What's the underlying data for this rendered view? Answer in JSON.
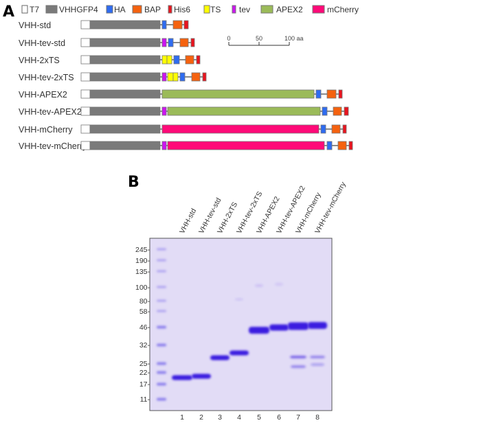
{
  "panel_a": {
    "label": "A",
    "legend": [
      {
        "name": "T7",
        "color": "#ffffff"
      },
      {
        "name": "VHHGFP4",
        "color": "#7a7a7a"
      },
      {
        "name": "HA",
        "color": "#2f6cf0"
      },
      {
        "name": "BAP",
        "color": "#f5620f"
      },
      {
        "name": "His6",
        "color": "#e8141e"
      },
      {
        "name": "TS",
        "color": "#ffff00"
      },
      {
        "name": "tev",
        "color": "#cc14f0"
      },
      {
        "name": "APEX2",
        "color": "#9bbb59"
      },
      {
        "name": "mCherry",
        "color": "#ff0a78"
      }
    ],
    "constructs": [
      {
        "name": "VHH-std",
        "domains": [
          "T7",
          "VHHGFP4",
          "HA",
          "BAP",
          "His6"
        ]
      },
      {
        "name": "VHH-tev-std",
        "domains": [
          "T7",
          "VHHGFP4",
          "tev",
          "HA",
          "BAP",
          "His6"
        ]
      },
      {
        "name": "VHH-2xTS",
        "domains": [
          "T7",
          "VHHGFP4",
          "TS",
          "TS",
          "HA",
          "BAP",
          "His6"
        ]
      },
      {
        "name": "VHH-tev-2xTS",
        "domains": [
          "T7",
          "VHHGFP4",
          "tev",
          "TS",
          "TS",
          "HA",
          "BAP",
          "His6"
        ]
      },
      {
        "name": "VHH-APEX2",
        "domains": [
          "T7",
          "VHHGFP4",
          "APEX2",
          "HA",
          "BAP",
          "His6"
        ]
      },
      {
        "name": "VHH-tev-APEX2",
        "domains": [
          "T7",
          "VHHGFP4",
          "tev",
          "APEX2",
          "HA",
          "BAP",
          "His6"
        ]
      },
      {
        "name": "VHH-mCherry",
        "domains": [
          "T7",
          "VHHGFP4",
          "mCherry",
          "HA",
          "BAP",
          "His6"
        ]
      },
      {
        "name": "VHH-tev-mCherry",
        "domains": [
          "T7",
          "VHHGFP4",
          "tev",
          "mCherry",
          "HA",
          "BAP",
          "His6"
        ]
      }
    ],
    "scale_bar": {
      "ticks": [
        "0",
        "50",
        "100 aa"
      ]
    }
  },
  "panel_b": {
    "label": "B",
    "lane_labels": [
      "VHH-std",
      "VHH-tev-std",
      "VHH-2xTS",
      "VHH-tev-2xTS",
      "VHH-APEX2",
      "VHH-tev-APEX2",
      "VHH-mCherry",
      "VHH-tev-mCherry"
    ],
    "lane_numbers": [
      "1",
      "2",
      "3",
      "4",
      "5",
      "6",
      "7",
      "8"
    ],
    "markers": [
      "245-",
      "190-",
      "135-",
      "100-",
      "80-",
      "58-",
      "46-",
      "32-",
      "25-",
      "22-",
      "17-",
      "11-"
    ],
    "gel_color": "#e2dcf6",
    "band_color": "#3a1fe0"
  }
}
